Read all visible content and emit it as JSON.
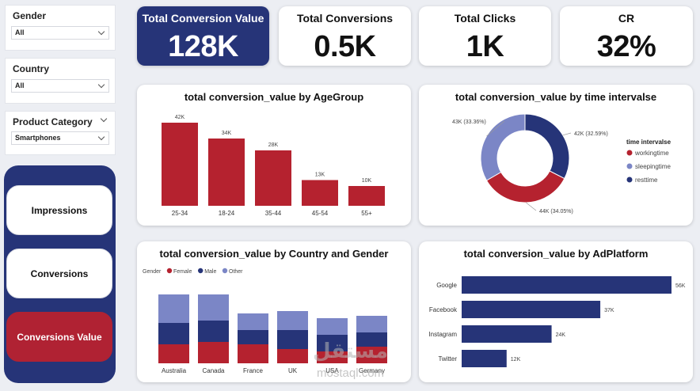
{
  "slicers": {
    "gender": {
      "title": "Gender",
      "value": "All"
    },
    "country": {
      "title": "Country",
      "value": "All"
    },
    "category": {
      "title": "Product Category",
      "value": "Smartphones"
    }
  },
  "nav": {
    "impressions": "Impressions",
    "conversions": "Conversions",
    "conversions_value": "Conversions Value"
  },
  "kpis": {
    "total_conversion_value": {
      "label": "Total Conversion Value",
      "value": "128K"
    },
    "total_conversions": {
      "label": "Total Conversions",
      "value": "0.5K"
    },
    "total_clicks": {
      "label": "Total Clicks",
      "value": "1K"
    },
    "cr": {
      "label": "CR",
      "value": "32%"
    }
  },
  "watermark": {
    "arabic": "مستقل",
    "latin": "mostaql.com"
  },
  "colors": {
    "red": "#b5222f",
    "navy": "#263478",
    "lavender": "#7b86c6",
    "accent_panel": "#263478"
  },
  "chart_data": [
    {
      "type": "bar",
      "title": "total conversion_value by AgeGroup",
      "categories": [
        "25-34",
        "18-24",
        "35-44",
        "45-54",
        "55+"
      ],
      "values": [
        42,
        34,
        28,
        13,
        10
      ],
      "labels": [
        "42K",
        "34K",
        "28K",
        "13K",
        "10K"
      ],
      "ylim": [
        0,
        42
      ],
      "color": "#b5222f"
    },
    {
      "type": "pie",
      "variant": "donut",
      "title": "total conversion_value by time intervalse",
      "legend_title": "time intervalse",
      "legend_position": "right",
      "slices": [
        {
          "name": "workingtime",
          "value": 44,
          "label": "44K (34.05%)",
          "color": "#b5222f"
        },
        {
          "name": "sleepingtime",
          "value": 43,
          "label": "43K (33.36%)",
          "color": "#7b86c6"
        },
        {
          "name": "resttime",
          "value": 42,
          "label": "42K (32.59%)",
          "color": "#263478"
        }
      ]
    },
    {
      "type": "bar",
      "variant": "stacked",
      "title": "total conversion_value by Country and Gender",
      "legend_title": "Gender",
      "legend_position": "top-left",
      "categories": [
        "Australia",
        "Canada",
        "France",
        "UK",
        "USA",
        "Germany"
      ],
      "series": [
        {
          "name": "Female",
          "color": "#b5222f",
          "values": [
            8,
            9,
            8,
            6,
            5,
            7
          ]
        },
        {
          "name": "Male",
          "color": "#263478",
          "values": [
            9,
            9,
            6,
            8,
            7,
            6
          ]
        },
        {
          "name": "Other",
          "color": "#7b86c6",
          "values": [
            12,
            11,
            7,
            8,
            7,
            7
          ]
        }
      ]
    },
    {
      "type": "bar",
      "orientation": "horizontal",
      "title": "total conversion_value by AdPlatform",
      "categories": [
        "Google",
        "Facebook",
        "Instagram",
        "Twitter"
      ],
      "values": [
        56,
        37,
        24,
        12
      ],
      "labels": [
        "56K",
        "37K",
        "24K",
        "12K"
      ],
      "xlim": [
        0,
        56
      ],
      "color": "#263478"
    }
  ]
}
